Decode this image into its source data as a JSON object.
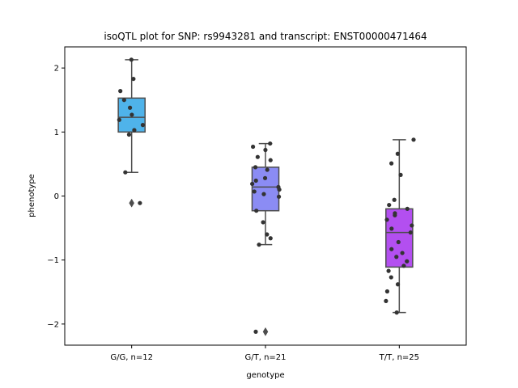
{
  "chart_data": {
    "type": "box",
    "title": "isoQTL plot for SNP: rs9943281 and transcript: ENST00000471464",
    "xlabel": "genotype",
    "ylabel": "phenotype",
    "ylim": [
      -2.33,
      2.33
    ],
    "yticks": [
      -2,
      -1,
      0,
      1,
      2
    ],
    "grid": false,
    "categories": [
      "G/G, n=12",
      "G/T, n=21",
      "T/T, n=25"
    ],
    "boxes": [
      {
        "category": "G/G, n=12",
        "color": "#4fb3ea",
        "q1": 1.0,
        "median": 1.23,
        "q3": 1.53,
        "whisker_low": 0.37,
        "whisker_high": 2.13,
        "outliers": [
          -0.11
        ],
        "points": [
          2.13,
          1.83,
          1.64,
          1.5,
          1.38,
          1.27,
          1.19,
          1.11,
          1.03,
          0.96,
          0.37,
          -0.11
        ]
      },
      {
        "category": "G/T, n=21",
        "color": "#8b8cf4",
        "q1": -0.23,
        "median": 0.14,
        "q3": 0.45,
        "whisker_low": -0.76,
        "whisker_high": 0.82,
        "outliers": [
          -2.12
        ],
        "points": [
          0.82,
          0.77,
          0.72,
          0.61,
          0.56,
          0.45,
          0.41,
          0.28,
          0.24,
          0.19,
          0.14,
          0.1,
          0.07,
          0.03,
          -0.01,
          -0.23,
          -0.41,
          -0.6,
          -0.66,
          -0.76,
          -2.12
        ]
      },
      {
        "category": "T/T, n=25",
        "color": "#b34ff0",
        "q1": -1.11,
        "median": -0.57,
        "q3": -0.2,
        "whisker_low": -1.82,
        "whisker_high": 0.88,
        "outliers": [],
        "points": [
          0.88,
          0.66,
          0.51,
          0.33,
          -0.06,
          -0.14,
          -0.2,
          -0.27,
          -0.3,
          -0.37,
          -0.46,
          -0.51,
          -0.57,
          -0.72,
          -0.83,
          -0.89,
          -0.95,
          -1.02,
          -1.09,
          -1.17,
          -1.27,
          -1.38,
          -1.49,
          -1.64,
          -1.82
        ]
      }
    ]
  }
}
